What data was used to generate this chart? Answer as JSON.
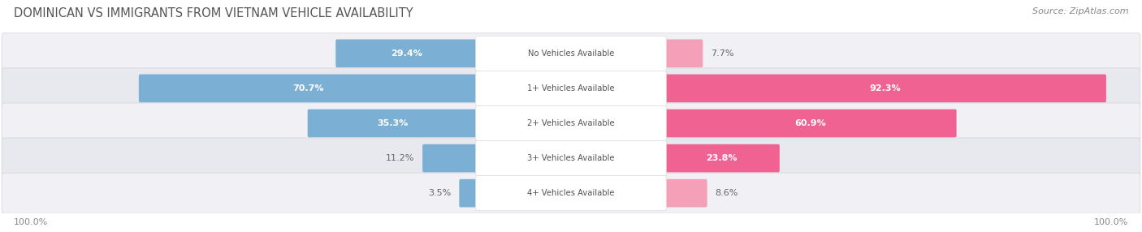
{
  "title": "DOMINICAN VS IMMIGRANTS FROM VIETNAM VEHICLE AVAILABILITY",
  "source": "Source: ZipAtlas.com",
  "categories": [
    "No Vehicles Available",
    "1+ Vehicles Available",
    "2+ Vehicles Available",
    "3+ Vehicles Available",
    "4+ Vehicles Available"
  ],
  "dominican": [
    29.4,
    70.7,
    35.3,
    11.2,
    3.5
  ],
  "vietnam": [
    7.7,
    92.3,
    60.9,
    23.8,
    8.6
  ],
  "dominican_color": "#7BAFD4",
  "vietnam_color_strong": "#F06292",
  "vietnam_color_light": "#F4A0B8",
  "row_bg_odd": "#F0F0F5",
  "row_bg_even": "#E8E8EF",
  "title_color": "#555555",
  "source_color": "#888888",
  "footer_color": "#888888",
  "label_text_color": "#555555",
  "pct_inside_color": "#FFFFFF",
  "pct_outside_color": "#666666",
  "figsize": [
    14.06,
    2.86
  ],
  "dpi": 100
}
